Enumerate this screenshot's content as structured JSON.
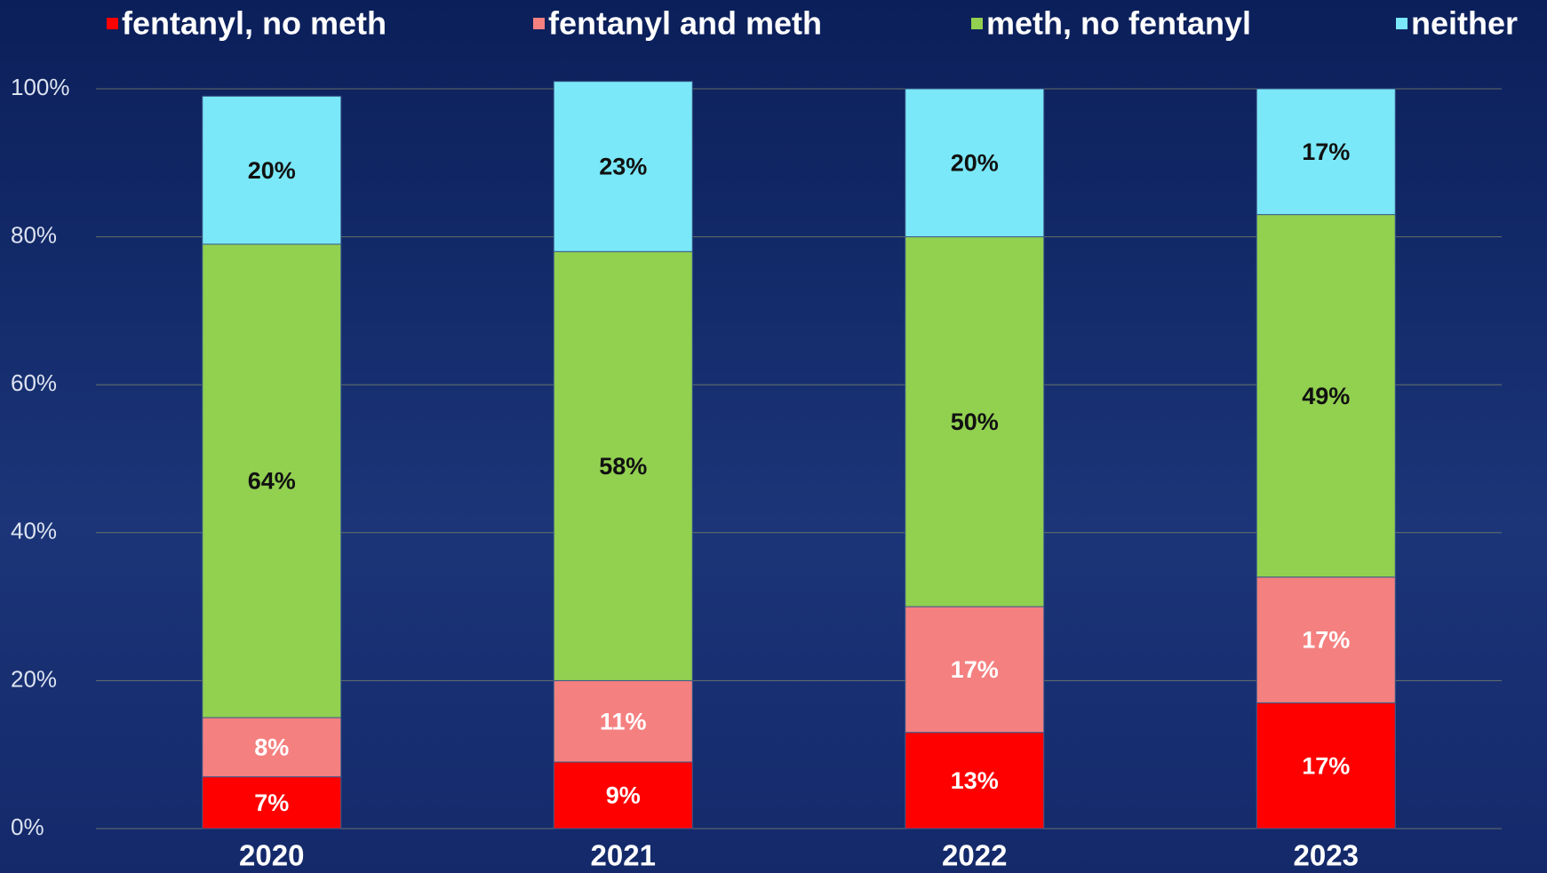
{
  "chart_data": {
    "type": "stacked_bar",
    "categories": [
      "2020",
      "2021",
      "2022",
      "2023"
    ],
    "series": [
      {
        "name": "fentanyl, no meth",
        "color": "#ff0000",
        "label_color": "#ffffff",
        "values": [
          7,
          9,
          13,
          17
        ],
        "value_labels": [
          "7%",
          "9%",
          "13%",
          "17%"
        ]
      },
      {
        "name": "fentanyl and meth",
        "color": "#f58080",
        "label_color": "#ffffff",
        "values": [
          8,
          11,
          17,
          17
        ],
        "value_labels": [
          "8%",
          "11%",
          "17%",
          "17%"
        ]
      },
      {
        "name": "meth, no fentanyl",
        "color": "#92d050",
        "label_color": "#111111",
        "values": [
          64,
          58,
          50,
          49
        ],
        "value_labels": [
          "64%",
          "58%",
          "50%",
          "49%"
        ]
      },
      {
        "name": "neither",
        "color": "#7ae8f8",
        "label_color": "#111111",
        "values": [
          20,
          23,
          20,
          17
        ],
        "value_labels": [
          "20%",
          "23%",
          "20%",
          "17%"
        ]
      }
    ],
    "ylim": [
      0,
      100
    ],
    "yticks": [
      {
        "value": 0,
        "label": "0%"
      },
      {
        "value": 20,
        "label": "20%"
      },
      {
        "value": 40,
        "label": "40%"
      },
      {
        "value": 60,
        "label": "60%"
      },
      {
        "value": 80,
        "label": "80%"
      },
      {
        "value": 100,
        "label": "100%"
      }
    ],
    "grid": true,
    "legend": "top"
  }
}
